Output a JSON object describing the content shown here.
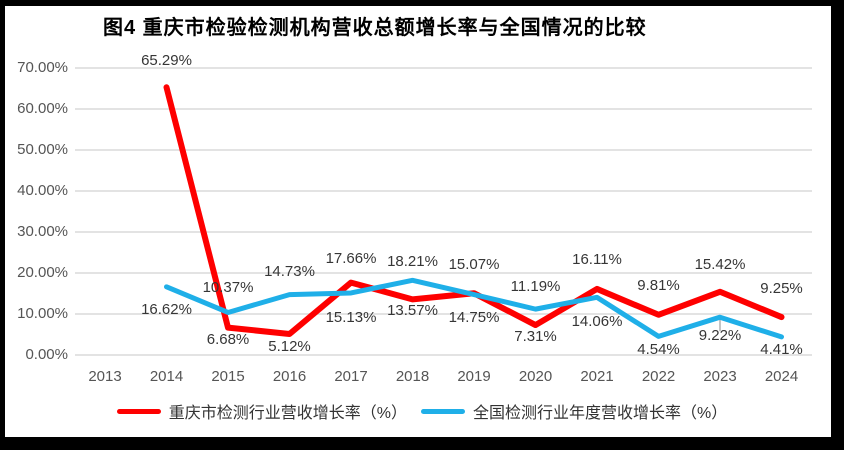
{
  "title": "图4 重庆市检验检测机构营收总额增长率与全国情况的比较",
  "colors": {
    "frame": "#000000",
    "panel": "#ffffff",
    "gridline": "#dadada",
    "leader_line": "#a6a6a6",
    "chongqing_red": "#fe0000",
    "national_blue": "#1fafe8"
  },
  "chart_data": {
    "type": "line",
    "title": "图4 重庆市检验检测机构营收总额增长率与全国情况的比较",
    "categories": [
      "2013",
      "2014",
      "2015",
      "2016",
      "2017",
      "2018",
      "2019",
      "2020",
      "2021",
      "2022",
      "2023",
      "2024"
    ],
    "y_ticks": [
      "70.00%",
      "60.00%",
      "50.00%",
      "40.00%",
      "30.00%",
      "20.00%",
      "10.00%",
      "0.00%"
    ],
    "ylim": [
      0,
      70
    ],
    "grid": true,
    "legend_position": "bottom",
    "series": [
      {
        "name": "重庆市检测行业营收增长率（%）",
        "color": "#fe0000",
        "start_year": "2014",
        "values": [
          65.29,
          6.68,
          5.12,
          17.66,
          13.57,
          15.07,
          7.31,
          16.11,
          9.81,
          15.42,
          9.25
        ],
        "labels": [
          "65.29%",
          "6.68%",
          "5.12%",
          "17.66%",
          "13.57%",
          "15.07%",
          "7.31%",
          "16.11%",
          "9.81%",
          "15.42%",
          "9.25%"
        ]
      },
      {
        "name": "全国检测行业年度营收增长率（%）",
        "color": "#1fafe8",
        "start_year": "2014",
        "values": [
          16.62,
          10.37,
          14.73,
          15.13,
          18.21,
          14.75,
          11.19,
          14.06,
          4.54,
          9.22,
          4.41
        ],
        "labels": [
          "16.62%",
          "10.37%",
          "14.73%",
          "15.13%",
          "18.21%",
          "14.75%",
          "11.19%",
          "14.06%",
          "4.54%",
          "9.22%",
          "4.41%"
        ]
      }
    ],
    "layout": {
      "start_category_index": 1,
      "label_dy": [
        [
          -26,
          12,
          13,
          -24,
          12,
          -28,
          12,
          -29,
          -29,
          -27,
          -28
        ],
        [
          23,
          -24,
          -23,
          25,
          -18,
          23,
          -22,
          25,
          14,
          19,
          13
        ]
      ],
      "leader_line": {
        "series_index": 1,
        "point_index": 9
      }
    }
  }
}
